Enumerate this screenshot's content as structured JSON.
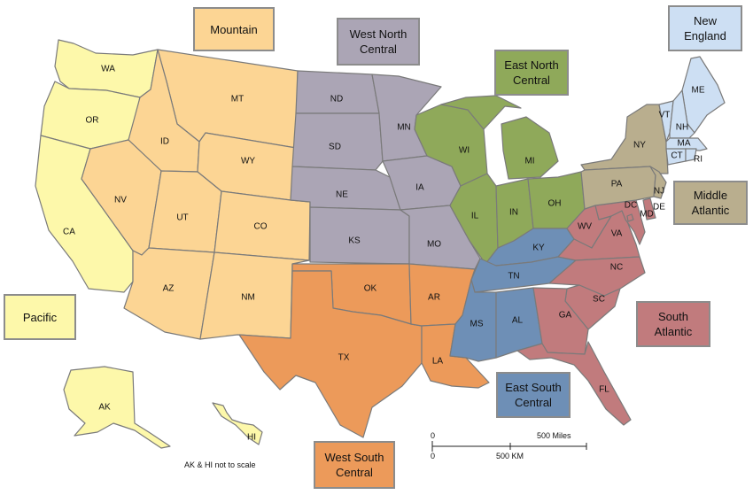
{
  "regions": {
    "mountain": {
      "line1": "Mountain",
      "line2": "",
      "color": "#fcd594"
    },
    "west_north_central": {
      "line1": "West North",
      "line2": "Central",
      "color": "#aba5b5"
    },
    "east_north_central": {
      "line1": "East North",
      "line2": "Central",
      "color": "#8fa95a"
    },
    "new_england": {
      "line1": "New",
      "line2": "England",
      "color": "#cddff3"
    },
    "middle_atlantic": {
      "line1": "Middle",
      "line2": "Atlantic",
      "color": "#b9ae8e"
    },
    "pacific": {
      "line1": "Pacific",
      "line2": "",
      "color": "#fdf8aa"
    },
    "south_atlantic": {
      "line1": "South",
      "line2": "Atlantic",
      "color": "#c17b7d"
    },
    "east_south_central": {
      "line1": "East South",
      "line2": "Central",
      "color": "#6e8fb6"
    },
    "west_south_central": {
      "line1": "West South",
      "line2": "Central",
      "color": "#ec9a5a"
    }
  },
  "states": {
    "WA": "WA",
    "OR": "OR",
    "CA": "CA",
    "AK": "AK",
    "HI": "HI",
    "MT": "MT",
    "ID": "ID",
    "WY": "WY",
    "NV": "NV",
    "UT": "UT",
    "CO": "CO",
    "AZ": "AZ",
    "NM": "NM",
    "ND": "ND",
    "SD": "SD",
    "NE": "NE",
    "KS": "KS",
    "MN": "MN",
    "IA": "IA",
    "MO": "MO",
    "WI": "WI",
    "MI": "MI",
    "IL": "IL",
    "IN": "IN",
    "OH": "OH",
    "OK": "OK",
    "TX": "TX",
    "AR": "AR",
    "LA": "LA",
    "KY": "KY",
    "TN": "TN",
    "MS": "MS",
    "AL": "AL",
    "WV": "WV",
    "VA": "VA",
    "NC": "NC",
    "SC": "SC",
    "GA": "GA",
    "FL": "FL",
    "DC": "DC",
    "MD": "MD",
    "DE": "DE",
    "NY": "NY",
    "PA": "PA",
    "NJ": "NJ",
    "ME": "ME",
    "VT": "VT",
    "NH": "NH",
    "MA": "MA",
    "CT": "CT",
    "RI": "RI"
  },
  "scale": {
    "miles_zero": "0",
    "miles_label": "500 Miles",
    "km_zero": "0",
    "km_label": "500 KM"
  },
  "note": "AK & HI not to scale"
}
